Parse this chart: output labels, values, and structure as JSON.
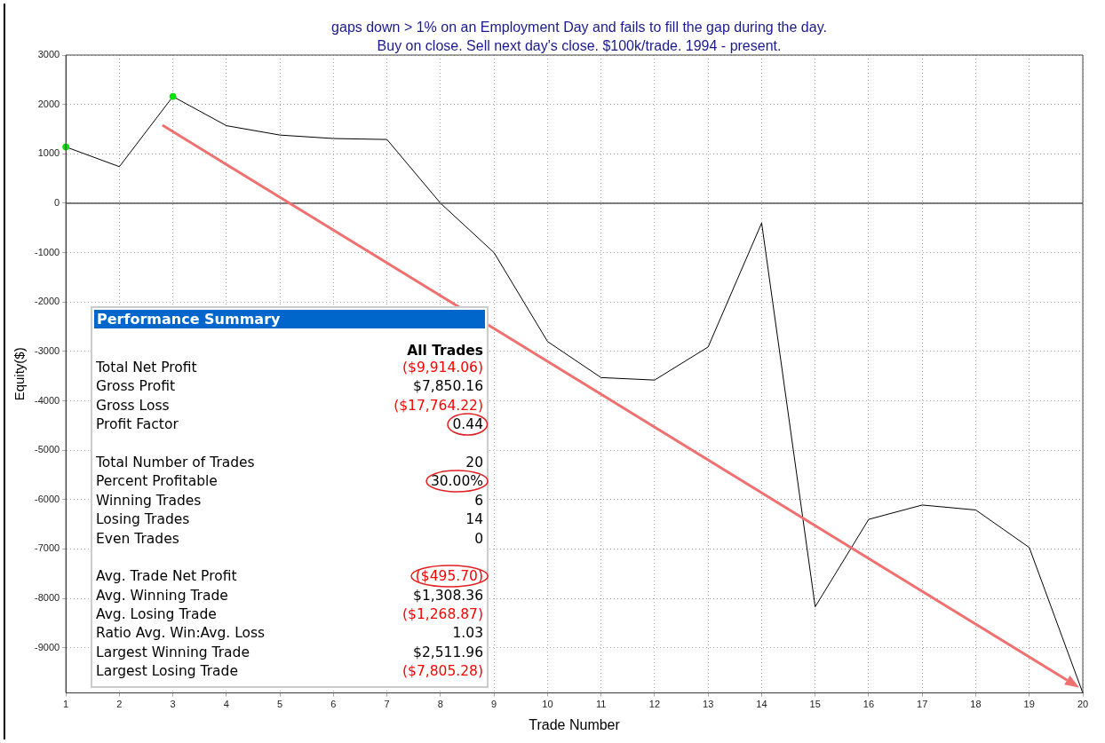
{
  "chart_data": [
    {
      "type": "line",
      "title": "gaps down > 1% on an Employment Day and fails to fill the gap during the day.",
      "subtitle": "Buy on close. Sell next day's close. $100k/trade. 1994 - present.",
      "xlabel": "Trade Number",
      "ylabel": "Equity($)",
      "series": [
        {
          "color": "#000000",
          "x": [
            1,
            2,
            3,
            4,
            5,
            6,
            7,
            8,
            9,
            10,
            11,
            12,
            13,
            14,
            15,
            16,
            17,
            18,
            19,
            20
          ],
          "values": [
            1140,
            740,
            2160,
            1570,
            1380,
            1310,
            1290,
            0,
            -1000,
            -2800,
            -3530,
            -3580,
            -2910,
            -400,
            -8170,
            -6400,
            -6110,
            -6210,
            -6970,
            -9914
          ]
        },
        {
          "type": "scatter",
          "color": "#00e000",
          "x": [
            1,
            3
          ],
          "values": [
            1140,
            2160
          ]
        }
      ],
      "xlim": [
        1,
        20
      ],
      "xticks": [
        1,
        2,
        3,
        4,
        5,
        6,
        7,
        8,
        9,
        10,
        11,
        12,
        13,
        14,
        15,
        16,
        17,
        18,
        19,
        20
      ],
      "ylim": [
        -9914,
        3000
      ],
      "yticks": [
        -9000,
        -8000,
        -7000,
        -6000,
        -5000,
        -4000,
        -3000,
        -2000,
        -1000,
        0,
        1000,
        2000,
        3000
      ],
      "ref_lines": [
        {
          "axis": "y",
          "value": 0,
          "color": "#555555"
        }
      ],
      "grid": true,
      "legend": false,
      "line_style": "solid"
    },
    {
      "type": "other",
      "title": "Performance Summary",
      "subtitle": "All Trades",
      "categories": [
        "Total Net Profit",
        "Gross Profit",
        "Gross Loss",
        "Profit Factor",
        null,
        "Total Number of Trades",
        "Percent Profitable",
        "Winning Trades",
        "Losing Trades",
        "Even Trades",
        null,
        "Avg. Trade Net Profit",
        "Avg. Winning Trade",
        "Avg. Losing Trade",
        "Ratio Avg. Win:Avg. Loss",
        "Largest Winning Trade",
        "Largest Losing Trade"
      ],
      "value_labels": [
        "($9,914.06)",
        "$7,850.16",
        "($17,764.22)",
        "0.44",
        null,
        "20",
        "30.00%",
        "6",
        "14",
        "0",
        null,
        "($495.70)",
        "$1,308.36",
        "($1,268.87)",
        "1.03",
        "$2,511.96",
        "($7,805.28)"
      ],
      "colors": [
        "#ff0000",
        "#000000",
        "#ff0000",
        "#000000",
        null,
        "#000000",
        "#000000",
        "#000000",
        "#000000",
        "#000000",
        null,
        "#ff0000",
        "#000000",
        "#ff0000",
        "#000000",
        "#000000",
        "#ff0000"
      ]
    }
  ]
}
